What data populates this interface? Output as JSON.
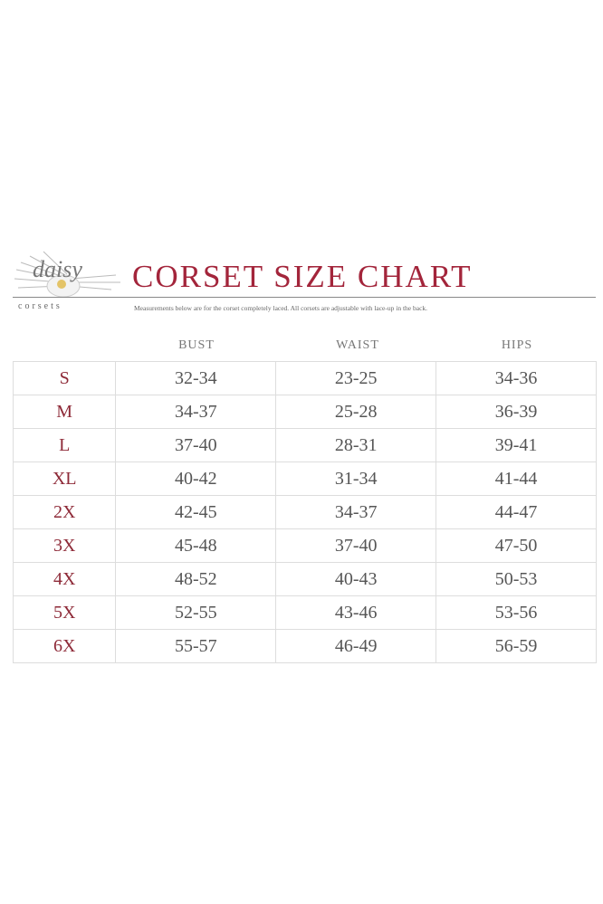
{
  "brand": {
    "name": "daisy",
    "sub": "corsets"
  },
  "title": "CORSET SIZE CHART",
  "caption": "Measurements below are for the corset completely laced.  All corsets are adjustable with lace-up in the back.",
  "columns": [
    "BUST",
    "WAIST",
    "HIPS"
  ],
  "colors": {
    "title": "#a3253b",
    "size_label": "#8e2a38",
    "text": "#555555",
    "grid": "#dddddd"
  },
  "rows": [
    {
      "size": "S",
      "bust": "32-34",
      "waist": "23-25",
      "hips": "34-36"
    },
    {
      "size": "M",
      "bust": "34-37",
      "waist": "25-28",
      "hips": "36-39"
    },
    {
      "size": "L",
      "bust": "37-40",
      "waist": "28-31",
      "hips": "39-41"
    },
    {
      "size": "XL",
      "bust": "40-42",
      "waist": "31-34",
      "hips": "41-44"
    },
    {
      "size": "2X",
      "bust": "42-45",
      "waist": "34-37",
      "hips": "44-47"
    },
    {
      "size": "3X",
      "bust": "45-48",
      "waist": "37-40",
      "hips": "47-50"
    },
    {
      "size": "4X",
      "bust": "48-52",
      "waist": "40-43",
      "hips": "50-53"
    },
    {
      "size": "5X",
      "bust": "52-55",
      "waist": "43-46",
      "hips": "53-56"
    },
    {
      "size": "6X",
      "bust": "55-57",
      "waist": "46-49",
      "hips": "56-59"
    }
  ]
}
